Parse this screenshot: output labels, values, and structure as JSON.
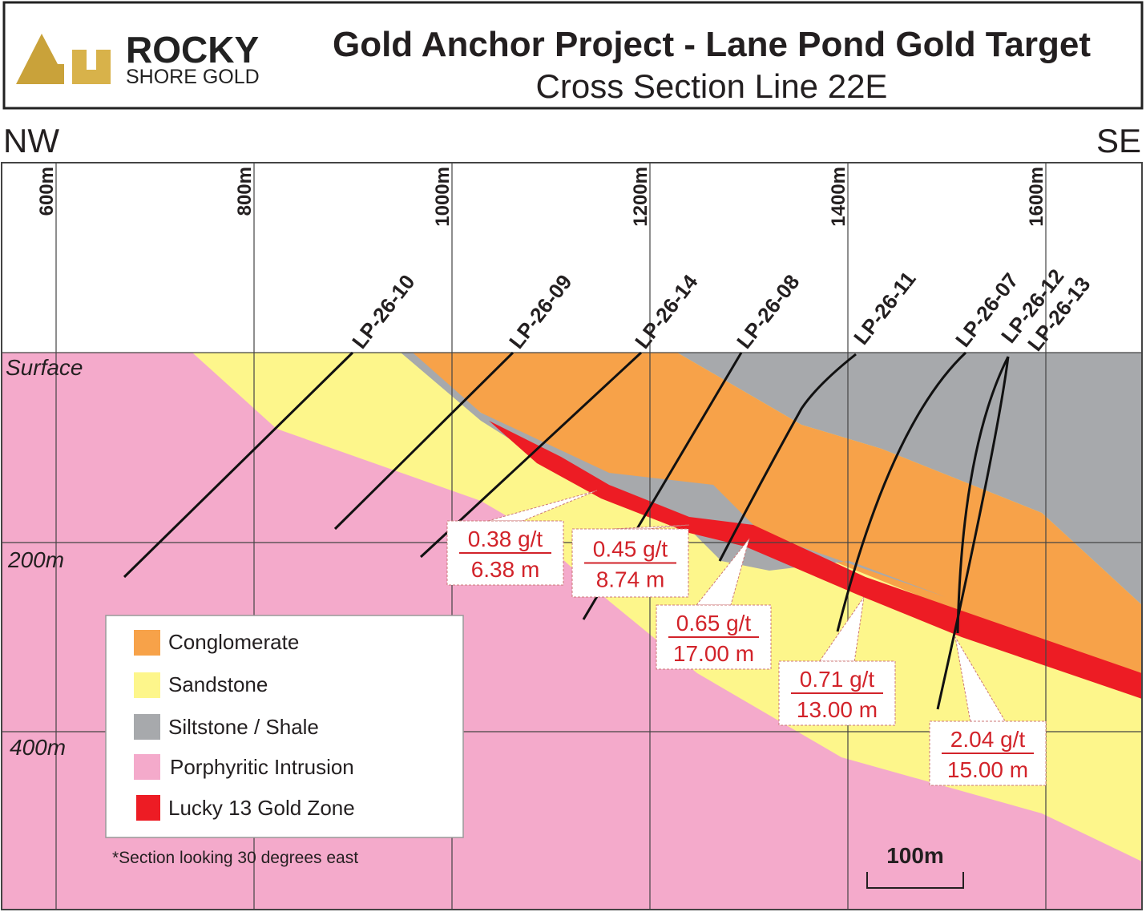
{
  "header": {
    "logo_top": "ROCKY",
    "logo_bottom": "SHORE GOLD",
    "title": "Gold Anchor Project - Lane Pond Gold Target",
    "subtitle": "Cross Section Line 22E"
  },
  "directions": {
    "left": "NW",
    "right": "SE"
  },
  "easting_labels": [
    "600m",
    "800m",
    "1000m",
    "1200m",
    "1400m",
    "1600m"
  ],
  "depth_labels": [
    "Surface",
    "200m",
    "400m"
  ],
  "drillholes": [
    "LP-26-10",
    "LP-26-09",
    "LP-26-14",
    "LP-26-08",
    "LP-26-11",
    "LP-26-07",
    "LP-26-12",
    "LP-26-13"
  ],
  "intercepts": [
    {
      "grade": "0.38 g/t",
      "length": "6.38 m"
    },
    {
      "grade": "0.45 g/t",
      "length": "8.74 m"
    },
    {
      "grade": "0.65 g/t",
      "length": "17.00 m"
    },
    {
      "grade": "0.71 g/t",
      "length": "13.00 m"
    },
    {
      "grade": "2.04 g/t",
      "length": "15.00 m"
    }
  ],
  "legend": [
    "Conglomerate",
    "Sandstone",
    "Siltstone / Shale",
    "Porphyritic Intrusion",
    "Lucky 13 Gold Zone"
  ],
  "note": "*Section looking 30 degrees east",
  "scale_bar": "100m"
}
